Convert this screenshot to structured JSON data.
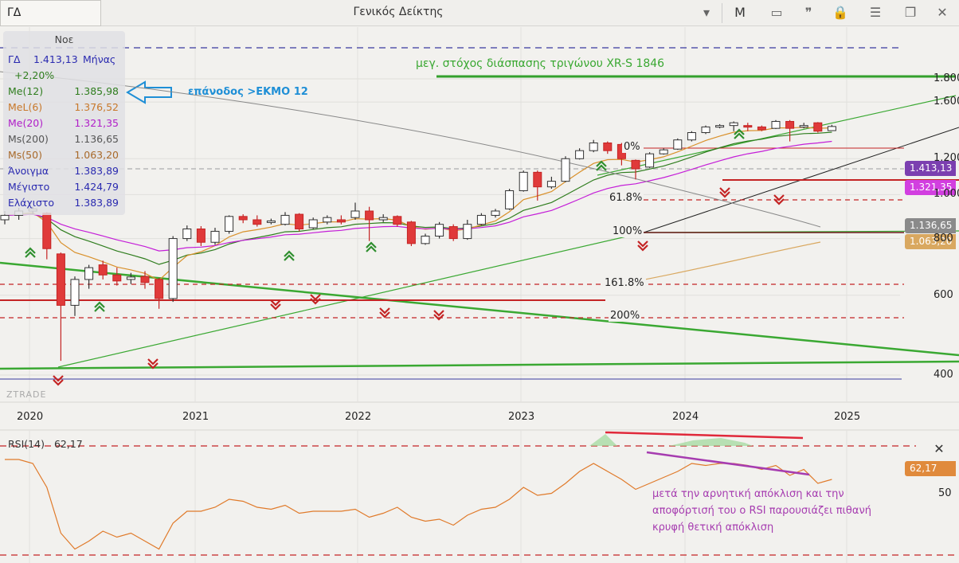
{
  "toolbar": {
    "symbol": "ΓΔ",
    "index_name": "Γενικός Δείκτης",
    "period_button": "M"
  },
  "legend": {
    "period": "Νοε",
    "symbol": "ΓΔ",
    "price": "1.413,13",
    "interval": "Μήνας",
    "change": "+2,20%",
    "rows": [
      {
        "label": "Me(12)",
        "value": "1.385,98",
        "color": "#2f7d1e"
      },
      {
        "label": "MeL(6)",
        "value": "1.376,52",
        "color": "#c8782a"
      },
      {
        "label": "Me(20)",
        "value": "1.321,35",
        "color": "#b01ec8"
      },
      {
        "label": "Ms(200)",
        "value": "1.136,65",
        "color": "#555555"
      },
      {
        "label": "Ms(50)",
        "value": "1.063,20",
        "color": "#a8692a"
      },
      {
        "label": "Άνοιγμα",
        "value": "1.383,89",
        "color": "#2a2ab0"
      },
      {
        "label": "Μέγιστο",
        "value": "1.424,79",
        "color": "#2a2ab0"
      },
      {
        "label": "Ελάχιστο",
        "value": "1.383,89",
        "color": "#2a2ab0"
      }
    ]
  },
  "annotations": {
    "target": "μεγ. στόχος διάσπασης τριγώνου XR-S 1846",
    "return": "επάνοδος >ΕΚΜΟ 12",
    "rsi_note_1": "μετά την αρνητική απόκλιση και την",
    "rsi_note_2": "αποφόρτισή του ο RSI παρουσιάζει πιθανή",
    "rsi_note_3": "κρυφή θετική απόκλιση",
    "watermark": "ZTRADE"
  },
  "fib_levels": {
    "f0": "0%",
    "f618": "61.8%",
    "f100": "100%",
    "f1618": "161.8%",
    "f200": "200%"
  },
  "price_tags": {
    "last": "1.413,13",
    "me20": "1.321,35",
    "ms200": "1.136,65",
    "ms50": "1.063,20",
    "rsi": "62,17"
  },
  "rsi": {
    "label": "RSI(14)",
    "value": "62,17",
    "level": "50"
  },
  "chart_data": {
    "type": "candlestick",
    "interval": "monthly",
    "y_axis_ticks": [
      "1.800",
      "1.600",
      "1.200",
      "1.000",
      "800",
      "600",
      "400"
    ],
    "x_axis_ticks": [
      "2020",
      "2021",
      "2022",
      "2023",
      "2024",
      "2025"
    ],
    "ylim": [
      330,
      1880
    ],
    "candles": [
      {
        "o": 880,
        "c": 900,
        "h": 920,
        "l": 860
      },
      {
        "o": 900,
        "c": 920,
        "h": 935,
        "l": 880
      },
      {
        "o": 920,
        "c": 930,
        "h": 940,
        "l": 905
      },
      {
        "o": 910,
        "c": 760,
        "h": 915,
        "l": 720
      },
      {
        "o": 740,
        "c": 570,
        "h": 745,
        "l": 430
      },
      {
        "o": 570,
        "c": 650,
        "h": 660,
        "l": 540
      },
      {
        "o": 650,
        "c": 690,
        "h": 700,
        "l": 620
      },
      {
        "o": 700,
        "c": 665,
        "h": 715,
        "l": 650
      },
      {
        "o": 665,
        "c": 645,
        "h": 690,
        "l": 630
      },
      {
        "o": 650,
        "c": 658,
        "h": 672,
        "l": 635
      },
      {
        "o": 660,
        "c": 640,
        "h": 678,
        "l": 620
      },
      {
        "o": 650,
        "c": 590,
        "h": 655,
        "l": 560
      },
      {
        "o": 590,
        "c": 800,
        "h": 810,
        "l": 580
      },
      {
        "o": 800,
        "c": 840,
        "h": 855,
        "l": 790
      },
      {
        "o": 840,
        "c": 785,
        "h": 852,
        "l": 770
      },
      {
        "o": 785,
        "c": 830,
        "h": 845,
        "l": 775
      },
      {
        "o": 830,
        "c": 895,
        "h": 900,
        "l": 820
      },
      {
        "o": 895,
        "c": 880,
        "h": 905,
        "l": 865
      },
      {
        "o": 880,
        "c": 860,
        "h": 900,
        "l": 850
      },
      {
        "o": 870,
        "c": 875,
        "h": 885,
        "l": 860
      },
      {
        "o": 860,
        "c": 900,
        "h": 915,
        "l": 855
      },
      {
        "o": 905,
        "c": 840,
        "h": 910,
        "l": 830
      },
      {
        "o": 845,
        "c": 880,
        "h": 890,
        "l": 840
      },
      {
        "o": 870,
        "c": 890,
        "h": 900,
        "l": 860
      },
      {
        "o": 880,
        "c": 870,
        "h": 900,
        "l": 860
      },
      {
        "o": 890,
        "c": 920,
        "h": 960,
        "l": 880
      },
      {
        "o": 920,
        "c": 880,
        "h": 940,
        "l": 790
      },
      {
        "o": 880,
        "c": 890,
        "h": 905,
        "l": 870
      },
      {
        "o": 895,
        "c": 860,
        "h": 900,
        "l": 850
      },
      {
        "o": 870,
        "c": 780,
        "h": 875,
        "l": 770
      },
      {
        "o": 780,
        "c": 810,
        "h": 820,
        "l": 775
      },
      {
        "o": 810,
        "c": 860,
        "h": 870,
        "l": 800
      },
      {
        "o": 850,
        "c": 800,
        "h": 860,
        "l": 790
      },
      {
        "o": 800,
        "c": 860,
        "h": 880,
        "l": 795
      },
      {
        "o": 860,
        "c": 900,
        "h": 910,
        "l": 855
      },
      {
        "o": 900,
        "c": 920,
        "h": 930,
        "l": 890
      },
      {
        "o": 930,
        "c": 1020,
        "h": 1030,
        "l": 925
      },
      {
        "o": 1020,
        "c": 1120,
        "h": 1130,
        "l": 1015
      },
      {
        "o": 1120,
        "c": 1040,
        "h": 1130,
        "l": 970
      },
      {
        "o": 1040,
        "c": 1070,
        "h": 1095,
        "l": 1030
      },
      {
        "o": 1070,
        "c": 1200,
        "h": 1215,
        "l": 1065
      },
      {
        "o": 1200,
        "c": 1250,
        "h": 1265,
        "l": 1195
      },
      {
        "o": 1250,
        "c": 1300,
        "h": 1320,
        "l": 1240
      },
      {
        "o": 1300,
        "c": 1250,
        "h": 1310,
        "l": 1230
      },
      {
        "o": 1290,
        "c": 1200,
        "h": 1300,
        "l": 1160
      },
      {
        "o": 1190,
        "c": 1140,
        "h": 1195,
        "l": 1080
      },
      {
        "o": 1150,
        "c": 1230,
        "h": 1240,
        "l": 1145
      },
      {
        "o": 1230,
        "c": 1255,
        "h": 1265,
        "l": 1225
      },
      {
        "o": 1260,
        "c": 1320,
        "h": 1330,
        "l": 1255
      },
      {
        "o": 1320,
        "c": 1370,
        "h": 1380,
        "l": 1310
      },
      {
        "o": 1370,
        "c": 1410,
        "h": 1420,
        "l": 1360
      },
      {
        "o": 1410,
        "c": 1420,
        "h": 1430,
        "l": 1400
      },
      {
        "o": 1420,
        "c": 1440,
        "h": 1450,
        "l": 1380
      },
      {
        "o": 1420,
        "c": 1410,
        "h": 1440,
        "l": 1380
      },
      {
        "o": 1410,
        "c": 1390,
        "h": 1420,
        "l": 1380
      },
      {
        "o": 1400,
        "c": 1450,
        "h": 1460,
        "l": 1395
      },
      {
        "o": 1450,
        "c": 1400,
        "h": 1460,
        "l": 1310
      },
      {
        "o": 1410,
        "c": 1420,
        "h": 1440,
        "l": 1400
      },
      {
        "o": 1440,
        "c": 1380,
        "h": 1445,
        "l": 1370
      },
      {
        "o": 1384,
        "c": 1413,
        "h": 1425,
        "l": 1384
      }
    ],
    "rsi_series": [
      72,
      72,
      70,
      58,
      35,
      27,
      31,
      36,
      33,
      35,
      31,
      27,
      40,
      46,
      46,
      48,
      52,
      51,
      48,
      47,
      49,
      45,
      46,
      46,
      46,
      47,
      43,
      45,
      48,
      43,
      41,
      42,
      39,
      44,
      47,
      48,
      52,
      58,
      54,
      55,
      60,
      66,
      70,
      66,
      62,
      57,
      60,
      63,
      66,
      70,
      69,
      70,
      70,
      69,
      67,
      69,
      64,
      67,
      60,
      62
    ]
  }
}
